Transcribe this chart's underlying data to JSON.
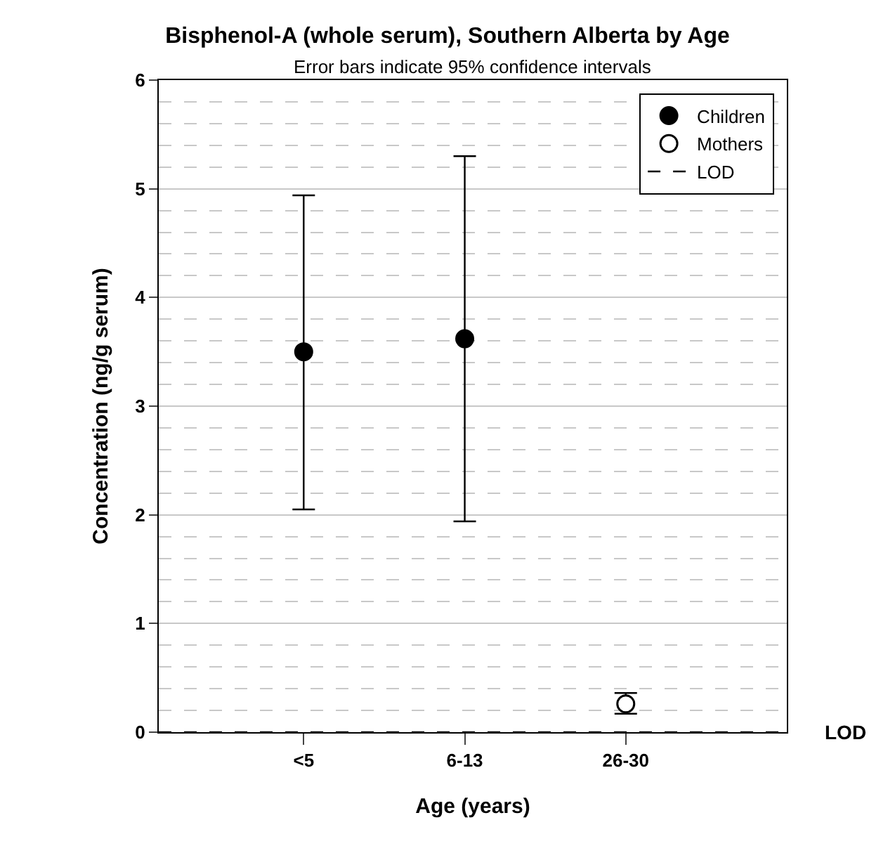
{
  "chart_data": {
    "type": "scatter",
    "title": "Bisphenol-A (whole serum), Southern Alberta by Age",
    "subtitle": "Error bars indicate 95% confidence intervals",
    "xlabel": "Age (years)",
    "ylabel": "Concentration (ng/g serum)",
    "categories": [
      "<5",
      "6-13",
      "26-30"
    ],
    "series": [
      {
        "name": "Children",
        "color": "#000000",
        "values": [
          3.5,
          3.62,
          null
        ],
        "errors": [
          [
            2.05,
            4.94
          ],
          [
            1.94,
            5.3
          ],
          null
        ]
      },
      {
        "name": "Mothers",
        "color": "#ffffff",
        "values": [
          null,
          null,
          0.26
        ],
        "errors": [
          null,
          null,
          [
            0.17,
            0.36
          ]
        ]
      }
    ],
    "ylim": [
      0,
      6
    ],
    "yticks": [
      0,
      1,
      2,
      3,
      4,
      5,
      6
    ],
    "ref_lines": [
      {
        "axis": "y",
        "value": 0,
        "label": "LOD",
        "color": "#000000",
        "line_style": "dashed"
      }
    ],
    "grid": "y",
    "legend": "top right",
    "marker": "circle"
  }
}
